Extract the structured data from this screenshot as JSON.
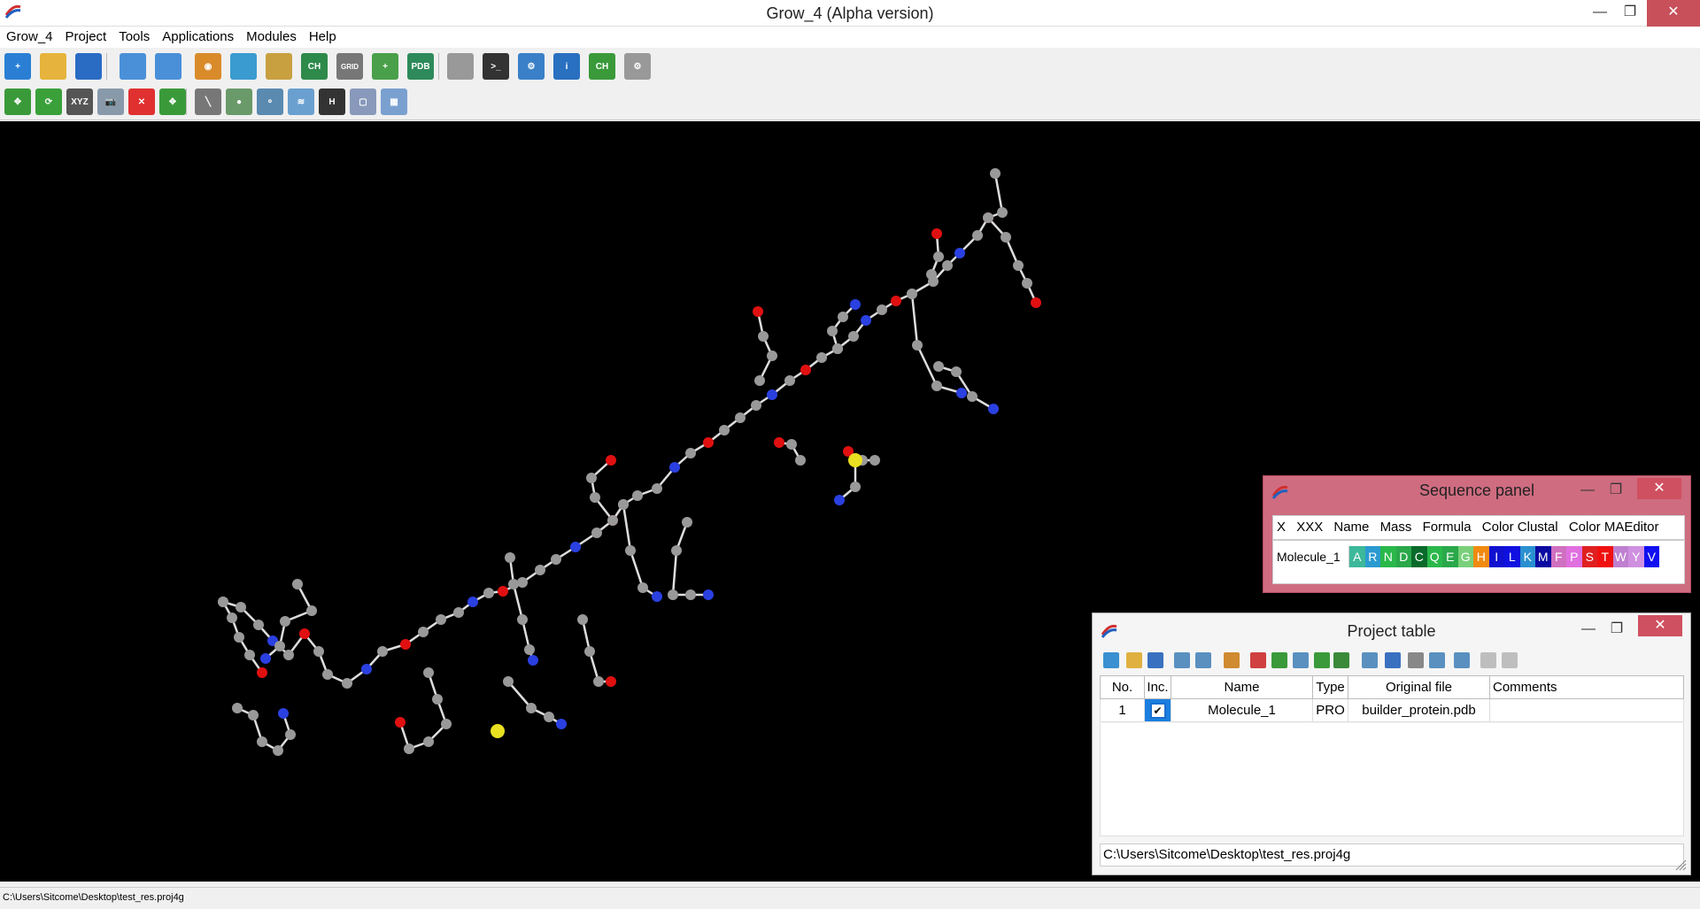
{
  "window": {
    "title": "Grow_4 (Alpha version)",
    "minimize": "—",
    "maximize": "❐",
    "close": "✕"
  },
  "menu": [
    "Grow_4",
    "Project",
    "Tools",
    "Applications",
    "Modules",
    "Help"
  ],
  "toolbar1": [
    {
      "name": "new-project-icon",
      "color": "#2a7fd4",
      "glyph": "+"
    },
    {
      "name": "open-folder-icon",
      "color": "#e6b43c",
      "glyph": ""
    },
    {
      "name": "save-icon",
      "color": "#2a6cc4",
      "glyph": ""
    },
    {
      "name": "table-import-icon",
      "color": "#4a90d9",
      "glyph": ""
    },
    {
      "name": "table-export-icon",
      "color": "#4a90d9",
      "glyph": ""
    },
    {
      "name": "view-eye-icon",
      "color": "#d98b2a",
      "glyph": "◉"
    },
    {
      "name": "grid-color-icon",
      "color": "#3a9bd0",
      "glyph": ""
    },
    {
      "name": "edit-table-icon",
      "color": "#c8a040",
      "glyph": ""
    },
    {
      "name": "ch-builder-icon",
      "color": "#2e8a4a",
      "glyph": "CH"
    },
    {
      "name": "grid-opt-icon",
      "color": "#777",
      "glyph": "GRID"
    },
    {
      "name": "graph-add-icon",
      "color": "#4aa04a",
      "glyph": "+"
    },
    {
      "name": "pdb-icon",
      "color": "#2e8a5a",
      "glyph": "PDB"
    },
    {
      "name": "database-icon",
      "color": "#999",
      "glyph": ""
    },
    {
      "name": "terminal-icon",
      "color": "#333",
      "glyph": ">_"
    },
    {
      "name": "settings-gears-icon",
      "color": "#3a80c8",
      "glyph": "⚙"
    },
    {
      "name": "info-icon",
      "color": "#2a70c0",
      "glyph": "i"
    },
    {
      "name": "ch-refresh-icon",
      "color": "#3a9a3a",
      "glyph": "CH"
    },
    {
      "name": "gear-icon",
      "color": "#999",
      "glyph": "⚙"
    }
  ],
  "toolbar2": [
    {
      "name": "expand-arrows-icon",
      "color": "#3a9a3a",
      "glyph": "✥"
    },
    {
      "name": "refresh-icon",
      "color": "#3aa03a",
      "glyph": "⟳"
    },
    {
      "name": "xyz-axis-icon",
      "color": "#555",
      "glyph": "XYZ"
    },
    {
      "name": "camera-icon",
      "color": "#8899aa",
      "glyph": "📷"
    },
    {
      "name": "delete-icon",
      "color": "#e03030",
      "glyph": "✕"
    },
    {
      "name": "shrink-arrows-icon",
      "color": "#3a9a3a",
      "glyph": "✥"
    },
    {
      "name": "bond-line-icon",
      "color": "#777",
      "glyph": "╲"
    },
    {
      "name": "atom-ball-icon",
      "color": "#6a9a6a",
      "glyph": "●"
    },
    {
      "name": "ball-stick-icon",
      "color": "#5a8ab0",
      "glyph": "⚬"
    },
    {
      "name": "wireframe-icon",
      "color": "#6aa0d0",
      "glyph": "≋"
    },
    {
      "name": "hydrogen-icon",
      "color": "#333",
      "glyph": "H"
    },
    {
      "name": "box-icon",
      "color": "#8899bb",
      "glyph": "▢"
    },
    {
      "name": "surface-icon",
      "color": "#7aa0d0",
      "glyph": "▦"
    }
  ],
  "sequence_panel": {
    "title": "Sequence panel",
    "headers": [
      "X",
      "XXX",
      "Name",
      "Mass",
      "Formula",
      "Color Clustal",
      "Color MAEditor"
    ],
    "molecule": "Molecule_1",
    "residues": [
      {
        "letter": "A",
        "color": "#3cb89a"
      },
      {
        "letter": "R",
        "color": "#2a9ad0"
      },
      {
        "letter": "N",
        "color": "#2ab84a"
      },
      {
        "letter": "D",
        "color": "#2aa84a"
      },
      {
        "letter": "C",
        "color": "#0a6a2a"
      },
      {
        "letter": "Q",
        "color": "#2ab84a"
      },
      {
        "letter": "E",
        "color": "#2aa84a"
      },
      {
        "letter": "G",
        "color": "#7ad07a"
      },
      {
        "letter": "H",
        "color": "#f08a10"
      },
      {
        "letter": "I",
        "color": "#1010d0"
      },
      {
        "letter": "L",
        "color": "#1010e0"
      },
      {
        "letter": "K",
        "color": "#2a90d0"
      },
      {
        "letter": "M",
        "color": "#0a0aa0"
      },
      {
        "letter": "F",
        "color": "#d070c0"
      },
      {
        "letter": "P",
        "color": "#e070e0"
      },
      {
        "letter": "S",
        "color": "#e02020"
      },
      {
        "letter": "T",
        "color": "#f01010"
      },
      {
        "letter": "W",
        "color": "#c080d0"
      },
      {
        "letter": "Y",
        "color": "#d090e0"
      },
      {
        "letter": "V",
        "color": "#1010f0"
      }
    ]
  },
  "project_table": {
    "title": "Project table",
    "columns": [
      "No.",
      "Inc.",
      "Name",
      "Type",
      "Original file",
      "Comments"
    ],
    "rows": [
      {
        "no": "1",
        "inc": "✔",
        "name": "Molecule_1",
        "type": "PRO",
        "file": "builder_protein.pdb",
        "comments": ""
      }
    ],
    "path": "C:\\Users\\Sitcome\\Desktop\\test_res.proj4g"
  },
  "status": {
    "path": "C:\\Users\\Sitcome\\Desktop\\test_res.proj4g"
  }
}
